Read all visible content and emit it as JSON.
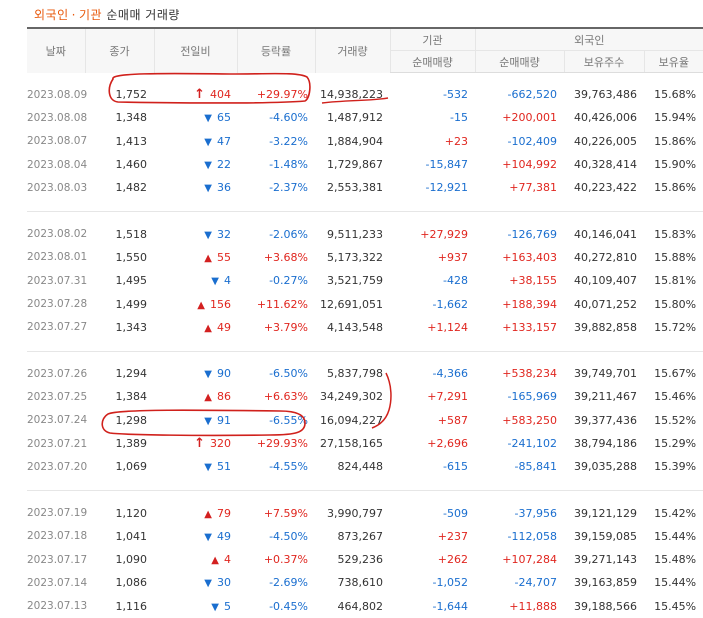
{
  "title": {
    "part1": "외국인",
    "dot": "·",
    "part2": "기관",
    "rest": "순매매 거래량"
  },
  "headers": {
    "date": "날짜",
    "close": "종가",
    "change": "전일비",
    "rate": "등락률",
    "volume": "거래량",
    "inst_group": "기관",
    "inst_net": "순매매량",
    "foreign_group": "외국인",
    "foreign_net": "순매매량",
    "foreign_shares": "보유주수",
    "foreign_ratio": "보유율"
  },
  "groups": [
    [
      {
        "date": "2023.08.09",
        "close": "1,752",
        "dir": "limit",
        "change": "404",
        "rate": "+29.97%",
        "volume": "14,938,223",
        "inst": "-532",
        "foreign_net": "-662,520",
        "shares": "39,763,486",
        "ratio": "15.68%"
      },
      {
        "date": "2023.08.08",
        "close": "1,348",
        "dir": "down",
        "change": "65",
        "rate": "-4.60%",
        "volume": "1,487,912",
        "inst": "-15",
        "foreign_net": "+200,001",
        "shares": "40,426,006",
        "ratio": "15.94%"
      },
      {
        "date": "2023.08.07",
        "close": "1,413",
        "dir": "down",
        "change": "47",
        "rate": "-3.22%",
        "volume": "1,884,904",
        "inst": "+23",
        "foreign_net": "-102,409",
        "shares": "40,226,005",
        "ratio": "15.86%"
      },
      {
        "date": "2023.08.04",
        "close": "1,460",
        "dir": "down",
        "change": "22",
        "rate": "-1.48%",
        "volume": "1,729,867",
        "inst": "-15,847",
        "foreign_net": "+104,992",
        "shares": "40,328,414",
        "ratio": "15.90%"
      },
      {
        "date": "2023.08.03",
        "close": "1,482",
        "dir": "down",
        "change": "36",
        "rate": "-2.37%",
        "volume": "2,553,381",
        "inst": "-12,921",
        "foreign_net": "+77,381",
        "shares": "40,223,422",
        "ratio": "15.86%"
      }
    ],
    [
      {
        "date": "2023.08.02",
        "close": "1,518",
        "dir": "down",
        "change": "32",
        "rate": "-2.06%",
        "volume": "9,511,233",
        "inst": "+27,929",
        "foreign_net": "-126,769",
        "shares": "40,146,041",
        "ratio": "15.83%"
      },
      {
        "date": "2023.08.01",
        "close": "1,550",
        "dir": "up",
        "change": "55",
        "rate": "+3.68%",
        "volume": "5,173,322",
        "inst": "+937",
        "foreign_net": "+163,403",
        "shares": "40,272,810",
        "ratio": "15.88%"
      },
      {
        "date": "2023.07.31",
        "close": "1,495",
        "dir": "down",
        "change": "4",
        "rate": "-0.27%",
        "volume": "3,521,759",
        "inst": "-428",
        "foreign_net": "+38,155",
        "shares": "40,109,407",
        "ratio": "15.81%"
      },
      {
        "date": "2023.07.28",
        "close": "1,499",
        "dir": "up",
        "change": "156",
        "rate": "+11.62%",
        "volume": "12,691,051",
        "inst": "-1,662",
        "foreign_net": "+188,394",
        "shares": "40,071,252",
        "ratio": "15.80%"
      },
      {
        "date": "2023.07.27",
        "close": "1,343",
        "dir": "up",
        "change": "49",
        "rate": "+3.79%",
        "volume": "4,143,548",
        "inst": "+1,124",
        "foreign_net": "+133,157",
        "shares": "39,882,858",
        "ratio": "15.72%"
      }
    ],
    [
      {
        "date": "2023.07.26",
        "close": "1,294",
        "dir": "down",
        "change": "90",
        "rate": "-6.50%",
        "volume": "5,837,798",
        "inst": "-4,366",
        "foreign_net": "+538,234",
        "shares": "39,749,701",
        "ratio": "15.67%"
      },
      {
        "date": "2023.07.25",
        "close": "1,384",
        "dir": "up",
        "change": "86",
        "rate": "+6.63%",
        "volume": "34,249,302",
        "inst": "+7,291",
        "foreign_net": "-165,969",
        "shares": "39,211,467",
        "ratio": "15.46%"
      },
      {
        "date": "2023.07.24",
        "close": "1,298",
        "dir": "down",
        "change": "91",
        "rate": "-6.55%",
        "volume": "16,094,227",
        "inst": "+587",
        "foreign_net": "+583,250",
        "shares": "39,377,436",
        "ratio": "15.52%"
      },
      {
        "date": "2023.07.21",
        "close": "1,389",
        "dir": "limit",
        "change": "320",
        "rate": "+29.93%",
        "volume": "27,158,165",
        "inst": "+2,696",
        "foreign_net": "-241,102",
        "shares": "38,794,186",
        "ratio": "15.29%"
      },
      {
        "date": "2023.07.20",
        "close": "1,069",
        "dir": "down",
        "change": "51",
        "rate": "-4.55%",
        "volume": "824,448",
        "inst": "-615",
        "foreign_net": "-85,841",
        "shares": "39,035,288",
        "ratio": "15.39%"
      }
    ],
    [
      {
        "date": "2023.07.19",
        "close": "1,120",
        "dir": "up",
        "change": "79",
        "rate": "+7.59%",
        "volume": "3,990,797",
        "inst": "-509",
        "foreign_net": "-37,956",
        "shares": "39,121,129",
        "ratio": "15.42%"
      },
      {
        "date": "2023.07.18",
        "close": "1,041",
        "dir": "down",
        "change": "49",
        "rate": "-4.50%",
        "volume": "873,267",
        "inst": "+237",
        "foreign_net": "-112,058",
        "shares": "39,159,085",
        "ratio": "15.44%"
      },
      {
        "date": "2023.07.17",
        "close": "1,090",
        "dir": "up",
        "change": "4",
        "rate": "+0.37%",
        "volume": "529,236",
        "inst": "+262",
        "foreign_net": "+107,284",
        "shares": "39,271,143",
        "ratio": "15.48%"
      },
      {
        "date": "2023.07.14",
        "close": "1,086",
        "dir": "down",
        "change": "30",
        "rate": "-2.69%",
        "volume": "738,610",
        "inst": "-1,052",
        "foreign_net": "-24,707",
        "shares": "39,163,859",
        "ratio": "15.44%"
      },
      {
        "date": "2023.07.13",
        "close": "1,116",
        "dir": "down",
        "change": "5",
        "rate": "-0.45%",
        "volume": "464,802",
        "inst": "-1,644",
        "foreign_net": "+11,888",
        "shares": "39,188,566",
        "ratio": "15.45%"
      }
    ]
  ],
  "icons": {
    "up": "up-triangle-icon",
    "down": "down-triangle-icon",
    "limit": "limit-up-arrow-icon"
  },
  "colors": {
    "up": "#e0261f",
    "down": "#1a6ecf",
    "title_accent": "#e8590c",
    "annotation": "#d0211c"
  }
}
